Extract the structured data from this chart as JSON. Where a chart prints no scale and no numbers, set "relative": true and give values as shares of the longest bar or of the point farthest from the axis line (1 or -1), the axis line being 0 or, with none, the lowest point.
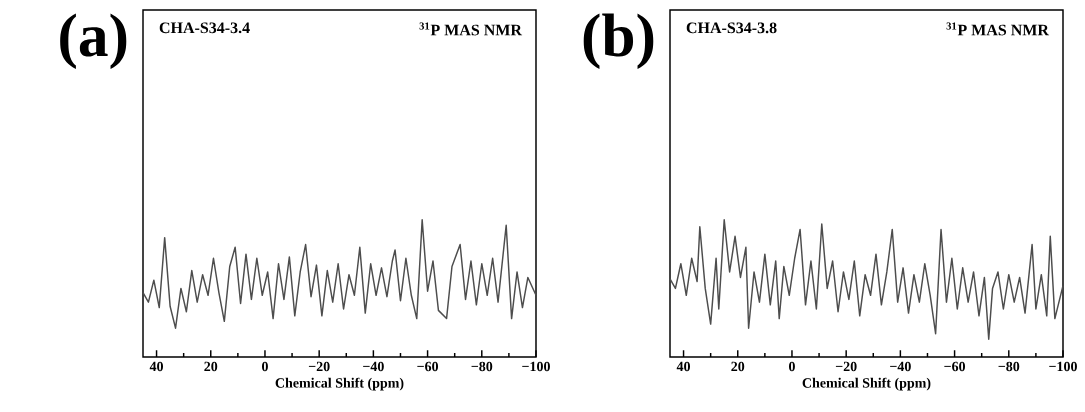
{
  "chart_data": [
    {
      "type": "line",
      "relative": true,
      "color": "#4d4d4d",
      "xlabel": "Chemical Shift (ppm)",
      "annotations": [
        "(a)",
        "CHA-S34-3.4",
        "$^{31}$P MAS NMR"
      ],
      "xlim": [
        45,
        -100
      ],
      "xticks": [
        40,
        20,
        0,
        {
          "value": -20,
          "label": "−20"
        },
        {
          "value": -40,
          "label": "−40"
        },
        {
          "value": -60,
          "label": "−60"
        },
        {
          "value": -80,
          "label": "−80"
        },
        {
          "value": -100,
          "label": "−100"
        }
      ],
      "x": [
        45,
        43,
        41,
        39,
        37,
        35,
        33,
        31,
        29,
        27,
        25,
        23,
        21,
        19,
        17,
        15,
        13,
        11,
        9,
        7,
        5,
        3,
        1,
        -1,
        -3,
        -5,
        -7,
        -9,
        -11,
        -13,
        -15,
        -17,
        -19,
        -21,
        -23,
        -25,
        -27,
        -29,
        -31,
        -33,
        -35,
        -37,
        -39,
        -41,
        -43,
        -45,
        -47,
        -48,
        -50,
        -52,
        -54,
        -56,
        -58,
        -60,
        -62,
        -64,
        -67,
        -69,
        -72,
        -74,
        -76,
        -78,
        -80,
        -82,
        -84,
        -86,
        -89,
        -91,
        -93,
        -95,
        -97,
        -100
      ],
      "values": [
        0.47,
        0.4,
        0.56,
        0.36,
        0.87,
        0.37,
        0.21,
        0.5,
        0.33,
        0.63,
        0.4,
        0.6,
        0.45,
        0.72,
        0.47,
        0.26,
        0.66,
        0.8,
        0.39,
        0.75,
        0.42,
        0.72,
        0.45,
        0.62,
        0.28,
        0.68,
        0.42,
        0.73,
        0.3,
        0.62,
        0.82,
        0.44,
        0.67,
        0.3,
        0.63,
        0.4,
        0.68,
        0.35,
        0.6,
        0.45,
        0.8,
        0.32,
        0.68,
        0.45,
        0.65,
        0.44,
        0.7,
        0.78,
        0.41,
        0.72,
        0.45,
        0.28,
        1.0,
        0.48,
        0.7,
        0.34,
        0.28,
        0.66,
        0.82,
        0.42,
        0.7,
        0.38,
        0.68,
        0.45,
        0.72,
        0.4,
        0.96,
        0.28,
        0.62,
        0.36,
        0.58,
        0.45
      ]
    },
    {
      "type": "line",
      "relative": true,
      "color": "#4d4d4d",
      "xlabel": "Chemical Shift (ppm)",
      "annotations": [
        "(b)",
        "CHA-S34-3.8",
        "$^{31}$P MAS NMR"
      ],
      "xlim": [
        45,
        -100
      ],
      "xticks": [
        40,
        20,
        0,
        {
          "value": -20,
          "label": "−20"
        },
        {
          "value": -40,
          "label": "−40"
        },
        {
          "value": -60,
          "label": "−60"
        },
        {
          "value": -80,
          "label": "−80"
        },
        {
          "value": -100,
          "label": "−100"
        }
      ],
      "x": [
        45,
        43,
        41,
        39,
        37,
        35,
        34,
        32,
        30,
        28,
        27,
        25,
        23,
        21,
        19,
        17,
        16,
        14,
        12,
        10,
        8,
        6,
        4.7,
        3,
        1,
        -1,
        -3,
        -5,
        -7,
        -9,
        -11,
        -13,
        -15,
        -17,
        -19,
        -21,
        -23,
        -25,
        -27,
        -29,
        -31,
        -33,
        -35,
        -37,
        -39,
        -41,
        -43,
        -45,
        -47,
        -49,
        -51,
        -53,
        -55,
        -57,
        -59,
        -61,
        -63,
        -65,
        -67,
        -69,
        -71,
        -72.6,
        -74,
        -76,
        -78,
        -80,
        -82,
        -84,
        -86,
        -88.6,
        -90,
        -92,
        -94,
        -95.3,
        -97,
        -100
      ],
      "values": [
        0.57,
        0.5,
        0.68,
        0.45,
        0.72,
        0.55,
        0.95,
        0.5,
        0.24,
        0.72,
        0.35,
        1.0,
        0.62,
        0.88,
        0.58,
        0.8,
        0.21,
        0.62,
        0.4,
        0.75,
        0.38,
        0.7,
        0.28,
        0.66,
        0.45,
        0.72,
        0.93,
        0.38,
        0.7,
        0.35,
        0.97,
        0.5,
        0.7,
        0.33,
        0.62,
        0.42,
        0.7,
        0.3,
        0.6,
        0.45,
        0.75,
        0.38,
        0.62,
        0.93,
        0.4,
        0.65,
        0.32,
        0.6,
        0.4,
        0.68,
        0.45,
        0.17,
        0.93,
        0.4,
        0.72,
        0.35,
        0.65,
        0.4,
        0.62,
        0.3,
        0.58,
        0.13,
        0.5,
        0.62,
        0.35,
        0.6,
        0.4,
        0.58,
        0.32,
        0.82,
        0.35,
        0.6,
        0.3,
        0.88,
        0.28,
        0.52
      ]
    }
  ]
}
